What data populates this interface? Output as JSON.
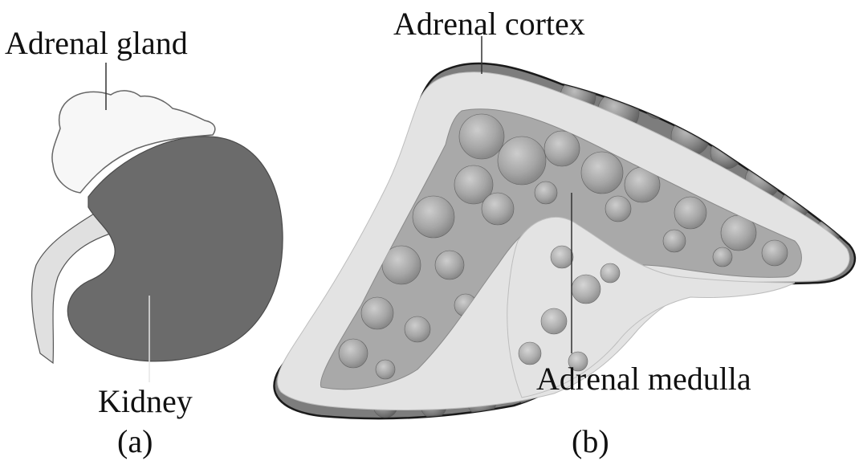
{
  "panels": [
    {
      "caption": "(a)",
      "labels": {
        "gland": "Adrenal gland",
        "kidney": "Kidney"
      }
    },
    {
      "caption": "(b)",
      "labels": {
        "cortex": "Adrenal cortex",
        "medulla": "Adrenal medulla"
      }
    }
  ],
  "colors": {
    "kidney": "#6b6b6b",
    "gland": "#f7f7f7",
    "ureter": "#e0e0e0",
    "cortex": "#e3e3e3",
    "medulla": "#a9a9a9",
    "outer_tissue": "#7d7d7d",
    "outline": "#1a1a1a"
  }
}
